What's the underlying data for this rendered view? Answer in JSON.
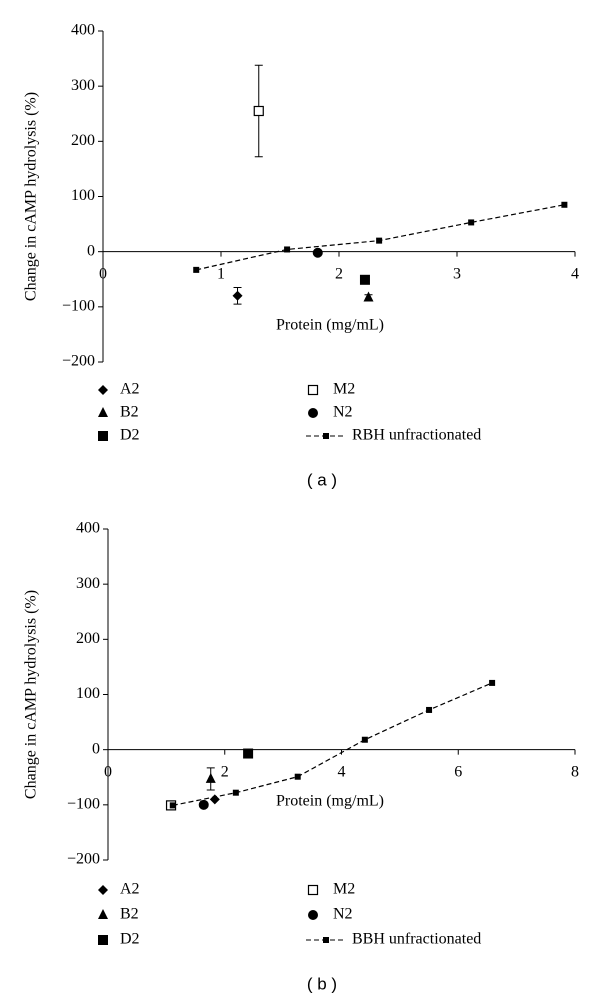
{
  "chart_data": [
    {
      "type": "scatter",
      "caption": "( a )",
      "x_label": "Protein (mg/mL)",
      "y_label": "Change in cAMP hydrolysis (%)",
      "xlim": [
        0,
        4
      ],
      "xticks": [
        0,
        1,
        2,
        3,
        4
      ],
      "ylim": [
        -200,
        400
      ],
      "yticks": [
        {
          "value": -200,
          "label": "−200"
        },
        {
          "value": -100,
          "label": "−100"
        },
        0,
        100,
        200,
        300,
        400
      ],
      "series": [
        {
          "name": "A2",
          "marker": "diamond",
          "color": "#000000",
          "x": [
            1.14
          ],
          "values": [
            -80
          ],
          "errors": [
            15
          ]
        },
        {
          "name": "B2",
          "marker": "triangle",
          "color": "#000000",
          "x": [
            2.25
          ],
          "values": [
            -83
          ],
          "errors": [
            5
          ]
        },
        {
          "name": "D2",
          "marker": "square",
          "color": "#000000",
          "x": [
            2.22
          ],
          "values": [
            -51
          ]
        },
        {
          "name": "M2",
          "marker": "square-open",
          "color": "#000000",
          "x": [
            1.32
          ],
          "values": [
            255
          ],
          "errors": [
            83
          ]
        },
        {
          "name": "N2",
          "marker": "circle",
          "color": "#000000",
          "x": [
            1.82
          ],
          "values": [
            -2
          ]
        },
        {
          "name": "RBH unfractionated",
          "marker": "square-small",
          "line": "dashed",
          "color": "#000000",
          "x": [
            0.79,
            1.56,
            2.34,
            3.12,
            3.91
          ],
          "values": [
            -33,
            4,
            20,
            53,
            85
          ]
        }
      ]
    },
    {
      "type": "scatter",
      "caption": "( b )",
      "x_label": "Protein (mg/mL)",
      "y_label": "Change in cAMP hydrolysis (%)",
      "xlim": [
        0,
        8
      ],
      "xticks": [
        0,
        2,
        4,
        6,
        8
      ],
      "ylim": [
        -200,
        400
      ],
      "yticks": [
        {
          "value": -200,
          "label": "−200"
        },
        {
          "value": -100,
          "label": "−100"
        },
        0,
        100,
        200,
        300,
        400
      ],
      "series": [
        {
          "name": "A2",
          "marker": "diamond",
          "color": "#000000",
          "x": [
            1.83
          ],
          "values": [
            -90
          ]
        },
        {
          "name": "B2",
          "marker": "triangle",
          "color": "#000000",
          "x": [
            1.76
          ],
          "values": [
            -53
          ],
          "errors": [
            20
          ]
        },
        {
          "name": "D2",
          "marker": "square",
          "color": "#000000",
          "x": [
            2.4
          ],
          "values": [
            -7
          ]
        },
        {
          "name": "M2",
          "marker": "square-open",
          "color": "#000000",
          "x": [
            1.08
          ],
          "values": [
            -101
          ]
        },
        {
          "name": "N2",
          "marker": "circle",
          "color": "#000000",
          "x": [
            1.64
          ],
          "values": [
            -100
          ]
        },
        {
          "name": "BBH unfractionated",
          "marker": "square-small",
          "line": "dashed",
          "color": "#000000",
          "x": [
            1.11,
            2.19,
            3.25,
            4.4,
            5.5,
            6.58
          ],
          "values": [
            -101,
            -78,
            -49,
            18,
            72,
            121
          ]
        }
      ]
    }
  ]
}
